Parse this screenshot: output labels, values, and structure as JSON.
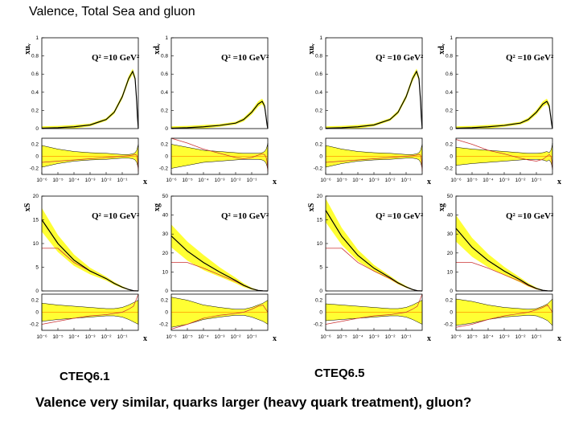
{
  "page": {
    "title": "Valence, Total Sea and gluon",
    "label_left": "CTEQ6.1",
    "label_right": "CTEQ6.5",
    "caption": "Valence very similar, quarks larger (heavy quark treatment), gluon?"
  },
  "colors": {
    "band": "#ffff33",
    "central": "#000000",
    "reference": "#cc3333",
    "ratio_line": "#ff9900"
  },
  "chart_data": {
    "type": "line",
    "annotation": "Q² =10 GeV²",
    "x_ticks": [
      "10⁻⁶",
      "10⁻⁵",
      "10⁻⁴",
      "10⁻³",
      "10⁻²",
      "10⁻¹"
    ],
    "xlabel": "x",
    "ratio_ylim": [
      -0.3,
      0.3
    ],
    "ratio_ticks": [
      "0.2",
      "0",
      "-0.2"
    ],
    "panels": [
      {
        "set": "CTEQ6.1",
        "ylabel": "xuᵥ",
        "ylim": [
          0,
          1
        ],
        "yticks": [
          "1",
          "0.8",
          "0.6",
          "0.4",
          "0.2",
          "0"
        ],
        "x": [
          -6,
          -5,
          -4,
          -3,
          -2,
          -1.5,
          -1,
          -0.6,
          -0.35,
          -0.2,
          -0.1,
          -0.05,
          0
        ],
        "y": [
          0.005,
          0.01,
          0.02,
          0.04,
          0.1,
          0.18,
          0.35,
          0.55,
          0.63,
          0.55,
          0.3,
          0.12,
          0.0
        ],
        "band": [
          0.02,
          0.02,
          0.02,
          0.015,
          0.015,
          0.02,
          0.025,
          0.03,
          0.03,
          0.03,
          0.03,
          0.02,
          0.01
        ],
        "ratio_band": [
          0.18,
          0.12,
          0.08,
          0.06,
          0.05,
          0.04,
          0.03,
          0.03,
          0.04,
          0.06,
          0.1,
          0.15,
          0.2
        ],
        "ratio_ref": [
          -0.1,
          -0.08,
          -0.06,
          -0.04,
          -0.02,
          -0.01,
          0,
          0.01,
          0.02,
          0.03,
          0.02,
          -0.05,
          -0.25
        ]
      },
      {
        "set": "CTEQ6.1",
        "ylabel": "xdᵥ",
        "ylim": [
          0,
          1
        ],
        "yticks": [
          "1",
          "0.8",
          "0.6",
          "0.4",
          "0.2",
          "0"
        ],
        "x": [
          -6,
          -5,
          -4,
          -3,
          -2,
          -1.5,
          -1,
          -0.6,
          -0.35,
          -0.2,
          -0.1,
          -0.05,
          0
        ],
        "y": [
          0.005,
          0.01,
          0.02,
          0.035,
          0.06,
          0.1,
          0.18,
          0.27,
          0.3,
          0.25,
          0.12,
          0.05,
          0.0
        ],
        "band": [
          0.02,
          0.02,
          0.02,
          0.015,
          0.015,
          0.02,
          0.025,
          0.03,
          0.03,
          0.03,
          0.025,
          0.02,
          0.01
        ],
        "ratio_band": [
          0.2,
          0.15,
          0.1,
          0.08,
          0.06,
          0.05,
          0.05,
          0.05,
          0.06,
          0.08,
          0.12,
          0.16,
          0.22
        ],
        "ratio_ref": [
          0.3,
          0.22,
          0.12,
          0.05,
          -0.02,
          -0.04,
          -0.02,
          0.02,
          0.04,
          0.03,
          -0.02,
          -0.08,
          -0.25
        ]
      },
      {
        "set": "CTEQ6.5",
        "ylabel": "xuᵥ",
        "ylim": [
          0,
          1
        ],
        "yticks": [
          "1",
          "0.8",
          "0.6",
          "0.4",
          "0.2",
          "0"
        ],
        "x": [
          -6,
          -5,
          -4,
          -3,
          -2,
          -1.5,
          -1,
          -0.6,
          -0.35,
          -0.2,
          -0.1,
          -0.05,
          0
        ],
        "y": [
          0.005,
          0.01,
          0.02,
          0.04,
          0.1,
          0.18,
          0.35,
          0.55,
          0.63,
          0.55,
          0.3,
          0.12,
          0.0
        ],
        "band": [
          0.02,
          0.02,
          0.02,
          0.015,
          0.015,
          0.02,
          0.025,
          0.03,
          0.03,
          0.03,
          0.03,
          0.02,
          0.01
        ],
        "ratio_band": [
          0.18,
          0.12,
          0.08,
          0.06,
          0.05,
          0.04,
          0.03,
          0.03,
          0.04,
          0.06,
          0.1,
          0.15,
          0.2
        ],
        "ratio_ref": [
          -0.1,
          -0.08,
          -0.06,
          -0.04,
          -0.02,
          -0.01,
          0,
          0.01,
          0.02,
          0.03,
          0.02,
          -0.05,
          -0.25
        ]
      },
      {
        "set": "CTEQ6.5",
        "ylabel": "xdᵥ",
        "ylim": [
          0,
          1
        ],
        "yticks": [
          "1",
          "0.8",
          "0.6",
          "0.4",
          "0.2",
          "0"
        ],
        "x": [
          -6,
          -5,
          -4,
          -3,
          -2,
          -1.5,
          -1,
          -0.6,
          -0.35,
          -0.2,
          -0.1,
          -0.05,
          0
        ],
        "y": [
          0.005,
          0.01,
          0.02,
          0.035,
          0.06,
          0.1,
          0.18,
          0.27,
          0.3,
          0.25,
          0.12,
          0.05,
          0.0
        ],
        "band": [
          0.02,
          0.02,
          0.02,
          0.015,
          0.015,
          0.02,
          0.025,
          0.03,
          0.03,
          0.03,
          0.025,
          0.02,
          0.01
        ],
        "ratio_band": [
          0.15,
          0.12,
          0.1,
          0.08,
          0.06,
          0.05,
          0.05,
          0.06,
          0.08,
          0.06,
          0.1,
          0.14,
          0.22
        ],
        "ratio_ref": [
          0.28,
          0.2,
          0.1,
          0.04,
          -0.03,
          -0.06,
          -0.08,
          -0.05,
          0.0,
          0.03,
          0.0,
          -0.06,
          -0.2
        ]
      },
      {
        "set": "CTEQ6.1",
        "ylabel": "xS",
        "ylim": [
          0,
          20
        ],
        "yticks": [
          "20",
          "15",
          "10",
          "5",
          "0"
        ],
        "x": [
          -6,
          -5,
          -4,
          -3,
          -2,
          -1.5,
          -1,
          -0.6,
          -0.3,
          0
        ],
        "y": [
          15,
          10,
          6.5,
          4.2,
          2.6,
          1.6,
          0.8,
          0.3,
          0.05,
          0.0
        ],
        "band": [
          2.5,
          1.8,
          1.2,
          0.7,
          0.4,
          0.3,
          0.2,
          0.1,
          0.05,
          0.02
        ],
        "ref": [
          9,
          9,
          6,
          4.2,
          2.6,
          1.6,
          0.8,
          0.3,
          0.05,
          0.0
        ],
        "ratio_band": [
          0.15,
          0.12,
          0.1,
          0.08,
          0.06,
          0.06,
          0.08,
          0.12,
          0.16,
          0.2
        ],
        "ratio_ref": [
          -0.2,
          -0.15,
          -0.1,
          -0.06,
          -0.04,
          -0.02,
          0.0,
          0.05,
          0.1,
          0.3
        ]
      },
      {
        "set": "CTEQ6.1",
        "ylabel": "xg",
        "ylim": [
          0,
          50
        ],
        "yticks": [
          "50",
          "40",
          "30",
          "20",
          "10",
          "0"
        ],
        "x": [
          -6,
          -5,
          -4,
          -3,
          -2,
          -1.5,
          -1,
          -0.6,
          -0.3,
          0
        ],
        "y": [
          29,
          21,
          15,
          10,
          5.5,
          3,
          1.2,
          0.3,
          0.05,
          0.0
        ],
        "band": [
          6,
          5,
          4,
          2.5,
          1.5,
          1,
          0.5,
          0.2,
          0.05,
          0.02
        ],
        "ref": [
          15,
          15,
          12,
          8.5,
          5,
          2.8,
          1.1,
          0.3,
          0.05,
          0.0
        ],
        "ratio_band": [
          0.25,
          0.2,
          0.12,
          0.08,
          0.05,
          0.05,
          0.08,
          0.12,
          0.15,
          0.2
        ],
        "ratio_ref": [
          -0.28,
          -0.2,
          -0.1,
          -0.05,
          -0.02,
          0.0,
          0.05,
          0.1,
          0.12,
          0.0
        ]
      },
      {
        "set": "CTEQ6.5",
        "ylabel": "xS",
        "ylim": [
          0,
          20
        ],
        "yticks": [
          "20",
          "15",
          "10",
          "5",
          "0"
        ],
        "x": [
          -6,
          -5,
          -4,
          -3,
          -2,
          -1.5,
          -1,
          -0.6,
          -0.3,
          0
        ],
        "y": [
          17,
          11.5,
          7.5,
          4.8,
          2.8,
          1.7,
          0.85,
          0.3,
          0.05,
          0.0
        ],
        "band": [
          2.5,
          1.8,
          1.2,
          0.7,
          0.4,
          0.3,
          0.2,
          0.1,
          0.05,
          0.02
        ],
        "ref": [
          9,
          9,
          6,
          4.2,
          2.6,
          1.6,
          0.8,
          0.3,
          0.05,
          0.0
        ],
        "ratio_band": [
          0.14,
          0.12,
          0.1,
          0.08,
          0.06,
          0.06,
          0.08,
          0.12,
          0.16,
          0.2
        ],
        "ratio_ref": [
          -0.2,
          -0.15,
          -0.1,
          -0.06,
          -0.04,
          -0.02,
          0.0,
          0.05,
          0.1,
          0.3
        ]
      },
      {
        "set": "CTEQ6.5",
        "ylabel": "xg",
        "ylim": [
          0,
          50
        ],
        "yticks": [
          "50",
          "40",
          "30",
          "20",
          "10",
          "0"
        ],
        "x": [
          -6,
          -5,
          -4,
          -3,
          -2,
          -1.5,
          -1,
          -0.6,
          -0.3,
          0
        ],
        "y": [
          33,
          23,
          16,
          10.5,
          5.8,
          3.2,
          1.3,
          0.35,
          0.05,
          0.0
        ],
        "band": [
          7,
          5,
          3.5,
          2.2,
          1.3,
          0.9,
          0.5,
          0.2,
          0.05,
          0.02
        ],
        "ref": [
          15,
          15,
          12,
          8.5,
          5,
          2.8,
          1.1,
          0.3,
          0.05,
          0.0
        ],
        "ratio_band": [
          0.22,
          0.18,
          0.12,
          0.08,
          0.06,
          0.05,
          0.06,
          0.1,
          0.14,
          0.22
        ],
        "ratio_ref": [
          -0.25,
          -0.2,
          -0.12,
          -0.06,
          -0.02,
          0.0,
          0.04,
          0.08,
          0.12,
          0.0
        ]
      }
    ]
  }
}
